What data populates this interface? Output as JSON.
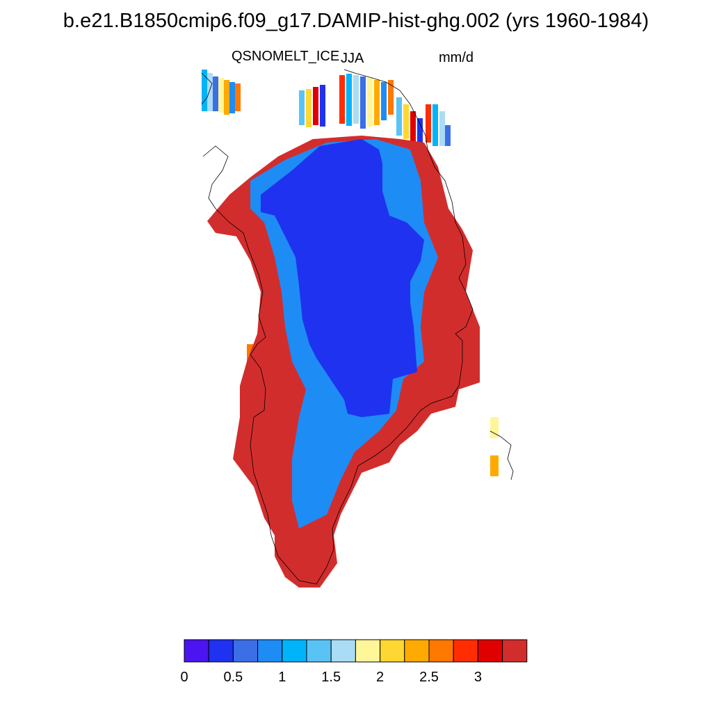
{
  "title": "b.e21.B1850cmip6.f09_g17.DAMIP-hist-ghg.002 (yrs 1960-1984)",
  "variable_label": "QSNOMELT_ICE",
  "season_label": "JJA",
  "units_label": "mm/d",
  "colorbar": {
    "colors": [
      "#4b14f0",
      "#1e32f0",
      "#3c6ee6",
      "#1e8cf5",
      "#00b4fa",
      "#5ac3f5",
      "#aadcf5",
      "#fff599",
      "#ffd732",
      "#ffaa00",
      "#ff7800",
      "#ff2d00",
      "#e10000",
      "#d22d2d"
    ],
    "tick_labels": [
      "0",
      "0.5",
      "1",
      "1.5",
      "2",
      "2.5",
      "3"
    ]
  },
  "map_colors": {
    "coast_red": "#d22d2d",
    "interior_blue": "#1e32f0",
    "outline": "#000000"
  }
}
